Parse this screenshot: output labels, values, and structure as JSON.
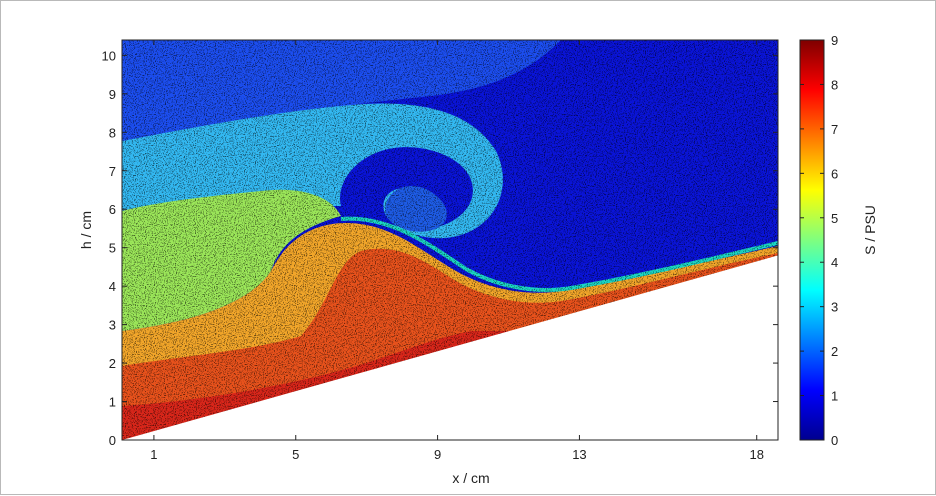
{
  "chart_data": {
    "type": "heatmap",
    "title": "",
    "xlabel": "x / cm",
    "ylabel": "h / cm",
    "xlim": [
      0.1,
      18.6
    ],
    "ylim": [
      0,
      10.4
    ],
    "xticks": [
      1,
      5,
      9,
      13,
      18
    ],
    "yticks": [
      0,
      1,
      2,
      3,
      4,
      5,
      6,
      7,
      8,
      9,
      10
    ],
    "colorbar": {
      "label": "S / PSU",
      "range": [
        0,
        9
      ],
      "ticks": [
        0,
        1,
        2,
        3,
        4,
        5,
        6,
        7,
        8,
        9
      ],
      "colormap": "jet",
      "colors": [
        "#00008f",
        "#0000ff",
        "#007fff",
        "#00ffff",
        "#7fff7f",
        "#ffff00",
        "#ff7f00",
        "#ff0000",
        "#7f0000"
      ]
    },
    "bottom_slope": {
      "x": [
        0.1,
        18.6
      ],
      "h": [
        0.0,
        4.8
      ]
    },
    "regions_salinity_psu": [
      {
        "region": "upper-right water",
        "salinity": 0.8
      },
      {
        "region": "upper layer",
        "salinity": 1.6
      },
      {
        "region": "billow",
        "salinity": 3.0
      },
      {
        "region": "intermediate layer",
        "salinity": 4.5
      },
      {
        "region": "dense lower layer",
        "salinity": 6.5
      },
      {
        "region": "bottom layer",
        "salinity": 8.0
      }
    ],
    "grid": false,
    "legend": "colorbar-right"
  }
}
